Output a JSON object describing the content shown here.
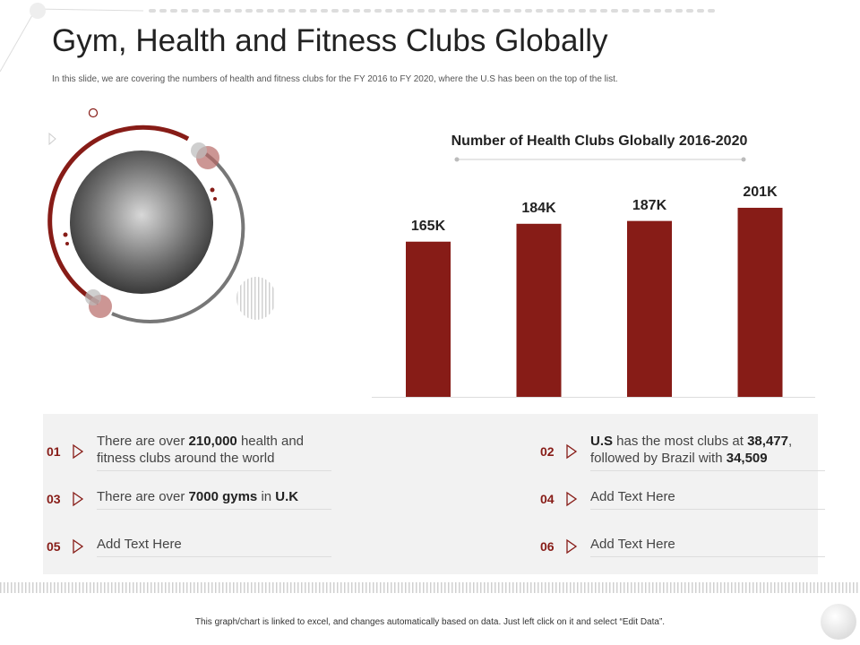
{
  "header": {
    "title": "Gym, Health and Fitness Clubs Globally",
    "subtitle": "In this slide, we are covering the numbers of health and fitness clubs for the FY 2016 to FY 2020, where the U.S has been on the top of the list."
  },
  "chart_data": {
    "type": "bar",
    "title": "Number of Health Clubs Globally 2016-2020",
    "categories": [
      null,
      null,
      null,
      null
    ],
    "values": [
      165,
      184,
      187,
      201
    ],
    "value_labels": [
      "165K",
      "184K",
      "187K",
      "201K"
    ],
    "color": "#871c17"
  },
  "notes": [
    {
      "number": "01",
      "parts": [
        "There are over ",
        "210,000",
        " health and fitness clubs around the world"
      ],
      "bold": [
        1
      ]
    },
    {
      "number": "02",
      "parts": [
        "U.S",
        " has the most clubs at ",
        "38,477",
        ", followed by Brazil with ",
        "34,509"
      ],
      "bold": [
        0,
        2,
        4
      ]
    },
    {
      "number": "03",
      "parts": [
        "There are over ",
        "7000 gyms",
        " in ",
        "U.K"
      ],
      "bold": [
        1,
        3
      ]
    },
    {
      "number": "04",
      "parts": [
        "Add Text Here"
      ],
      "bold": []
    },
    {
      "number": "05",
      "parts": [
        "Add Text Here"
      ],
      "bold": []
    },
    {
      "number": "06",
      "parts": [
        "Add Text Here"
      ],
      "bold": []
    }
  ],
  "footer": "This graph/chart is linked to excel, and changes automatically based on data. Just left click on it and select “Edit Data”."
}
